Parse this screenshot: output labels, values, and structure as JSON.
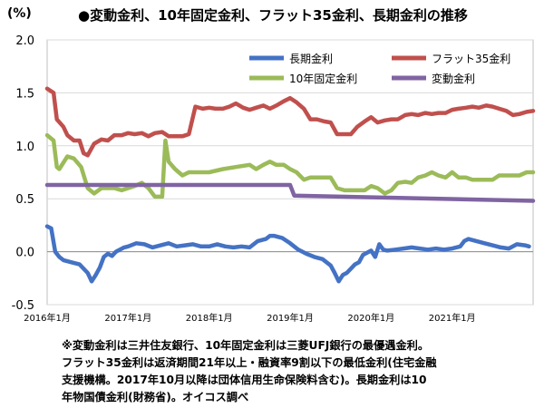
{
  "chart_data": {
    "type": "line",
    "title": "●変動金利、10年固定金利、フラット35金利、長期金利の推移",
    "ylabel": "(%)",
    "xlabel": "",
    "ylim": [
      -0.5,
      2.0
    ],
    "yticks": [
      "2.0",
      "1.5",
      "1.0",
      "0.5",
      "0.0",
      "-0.5"
    ],
    "ytick_values": [
      2.0,
      1.5,
      1.0,
      0.5,
      0.0,
      -0.5
    ],
    "xlim": [
      2016.0,
      2022.0
    ],
    "xticks": [
      "2016年1月",
      "2017年1月",
      "2018年1月",
      "2019年1月",
      "2020年1月",
      "2021年1月"
    ],
    "xtick_values": [
      2016.0,
      2017.0,
      2018.0,
      2019.0,
      2020.0,
      2021.0
    ],
    "legend_position": "top",
    "series": [
      {
        "name": "長期金利",
        "color": "#4472c4",
        "x": [
          2016.0,
          2016.05,
          2016.1,
          2016.15,
          2016.2,
          2016.3,
          2016.4,
          2016.5,
          2016.55,
          2016.6,
          2016.65,
          2016.7,
          2016.75,
          2016.8,
          2016.85,
          2016.9,
          2016.95,
          2017.0,
          2017.1,
          2017.2,
          2017.3,
          2017.4,
          2017.5,
          2017.6,
          2017.7,
          2017.8,
          2017.9,
          2018.0,
          2018.1,
          2018.2,
          2018.3,
          2018.4,
          2018.5,
          2018.6,
          2018.7,
          2018.75,
          2018.8,
          2018.9,
          2019.0,
          2019.1,
          2019.2,
          2019.3,
          2019.4,
          2019.5,
          2019.55,
          2019.6,
          2019.65,
          2019.7,
          2019.75,
          2019.8,
          2019.85,
          2019.9,
          2020.0,
          2020.05,
          2020.1,
          2020.15,
          2020.2,
          2020.3,
          2020.4,
          2020.5,
          2020.6,
          2020.7,
          2020.8,
          2020.9,
          2021.0,
          2021.1,
          2021.15,
          2021.2,
          2021.3,
          2021.4,
          2021.5,
          2021.6,
          2021.7,
          2021.8,
          2021.9,
          2021.95
        ],
        "y": [
          0.24,
          0.22,
          0.0,
          -0.05,
          -0.08,
          -0.1,
          -0.12,
          -0.2,
          -0.28,
          -0.22,
          -0.15,
          -0.05,
          -0.02,
          -0.04,
          0.0,
          0.02,
          0.04,
          0.05,
          0.08,
          0.07,
          0.04,
          0.06,
          0.08,
          0.05,
          0.06,
          0.07,
          0.05,
          0.05,
          0.07,
          0.05,
          0.04,
          0.05,
          0.04,
          0.1,
          0.12,
          0.15,
          0.15,
          0.13,
          0.08,
          0.02,
          -0.02,
          -0.05,
          -0.07,
          -0.13,
          -0.2,
          -0.28,
          -0.22,
          -0.2,
          -0.16,
          -0.12,
          -0.1,
          -0.03,
          0.01,
          -0.05,
          0.07,
          0.02,
          0.01,
          0.02,
          0.03,
          0.04,
          0.03,
          0.02,
          0.03,
          0.02,
          0.03,
          0.05,
          0.1,
          0.12,
          0.1,
          0.08,
          0.06,
          0.04,
          0.03,
          0.07,
          0.06,
          0.05
        ]
      },
      {
        "name": "フラット35金利",
        "color": "#c0504d",
        "x": [
          2016.0,
          2016.08,
          2016.12,
          2016.2,
          2016.25,
          2016.33,
          2016.4,
          2016.45,
          2016.5,
          2016.58,
          2016.67,
          2016.75,
          2016.83,
          2016.92,
          2017.0,
          2017.08,
          2017.17,
          2017.25,
          2017.33,
          2017.42,
          2017.5,
          2017.58,
          2017.67,
          2017.75,
          2017.83,
          2017.92,
          2018.0,
          2018.08,
          2018.17,
          2018.25,
          2018.33,
          2018.42,
          2018.5,
          2018.58,
          2018.67,
          2018.75,
          2018.83,
          2018.92,
          2019.0,
          2019.08,
          2019.17,
          2019.25,
          2019.33,
          2019.42,
          2019.5,
          2019.58,
          2019.67,
          2019.75,
          2019.83,
          2019.92,
          2020.0,
          2020.08,
          2020.17,
          2020.25,
          2020.33,
          2020.42,
          2020.5,
          2020.58,
          2020.67,
          2020.75,
          2020.83,
          2020.92,
          2021.0,
          2021.08,
          2021.17,
          2021.25,
          2021.33,
          2021.42,
          2021.5,
          2021.58,
          2021.67,
          2021.75,
          2021.83,
          2021.92,
          2022.0
        ],
        "y": [
          1.54,
          1.5,
          1.25,
          1.18,
          1.1,
          1.05,
          1.05,
          0.93,
          0.91,
          1.02,
          1.06,
          1.05,
          1.1,
          1.1,
          1.12,
          1.11,
          1.12,
          1.09,
          1.12,
          1.13,
          1.09,
          1.09,
          1.09,
          1.11,
          1.37,
          1.35,
          1.36,
          1.35,
          1.35,
          1.37,
          1.4,
          1.36,
          1.34,
          1.36,
          1.38,
          1.35,
          1.38,
          1.42,
          1.45,
          1.41,
          1.35,
          1.25,
          1.25,
          1.23,
          1.22,
          1.11,
          1.11,
          1.11,
          1.18,
          1.23,
          1.27,
          1.22,
          1.24,
          1.25,
          1.25,
          1.29,
          1.3,
          1.29,
          1.31,
          1.3,
          1.31,
          1.31,
          1.34,
          1.35,
          1.36,
          1.37,
          1.36,
          1.38,
          1.37,
          1.35,
          1.33,
          1.29,
          1.3,
          1.32,
          1.33
        ]
      },
      {
        "name": "10年固定金利",
        "color": "#9bbb59",
        "x": [
          2016.0,
          2016.08,
          2016.12,
          2016.15,
          2016.25,
          2016.33,
          2016.42,
          2016.5,
          2016.58,
          2016.67,
          2016.75,
          2016.83,
          2016.92,
          2017.0,
          2017.08,
          2017.17,
          2017.25,
          2017.33,
          2017.42,
          2017.46,
          2017.5,
          2017.58,
          2017.67,
          2017.75,
          2017.83,
          2017.92,
          2018.0,
          2018.17,
          2018.33,
          2018.5,
          2018.58,
          2018.67,
          2018.75,
          2018.83,
          2018.92,
          2019.0,
          2019.08,
          2019.17,
          2019.25,
          2019.33,
          2019.42,
          2019.5,
          2019.58,
          2019.67,
          2019.75,
          2019.83,
          2019.92,
          2020.0,
          2020.08,
          2020.17,
          2020.25,
          2020.33,
          2020.42,
          2020.5,
          2020.58,
          2020.67,
          2020.75,
          2020.83,
          2020.92,
          2021.0,
          2021.08,
          2021.17,
          2021.25,
          2021.33,
          2021.42,
          2021.5,
          2021.58,
          2021.67,
          2021.75,
          2021.83,
          2021.92,
          2022.0
        ],
        "y": [
          1.1,
          1.05,
          0.8,
          0.78,
          0.9,
          0.88,
          0.8,
          0.6,
          0.55,
          0.6,
          0.6,
          0.6,
          0.58,
          0.6,
          0.62,
          0.65,
          0.6,
          0.52,
          0.52,
          1.05,
          0.85,
          0.78,
          0.72,
          0.75,
          0.75,
          0.75,
          0.75,
          0.78,
          0.8,
          0.82,
          0.78,
          0.82,
          0.85,
          0.82,
          0.82,
          0.78,
          0.75,
          0.68,
          0.7,
          0.7,
          0.7,
          0.7,
          0.6,
          0.58,
          0.58,
          0.58,
          0.58,
          0.62,
          0.6,
          0.55,
          0.58,
          0.65,
          0.66,
          0.65,
          0.7,
          0.72,
          0.75,
          0.72,
          0.7,
          0.75,
          0.7,
          0.7,
          0.68,
          0.68,
          0.68,
          0.68,
          0.72,
          0.72,
          0.72,
          0.72,
          0.75,
          0.75
        ]
      },
      {
        "name": "変動金利",
        "color": "#8064a2",
        "x": [
          2016.0,
          2019.0,
          2019.05,
          2022.0
        ],
        "y": [
          0.63,
          0.63,
          0.53,
          0.48
        ]
      }
    ]
  },
  "note": {
    "line1": "※変動金利は三井住友銀行、10年固定金利は三菱UFJ銀行の最優遇金利。",
    "line2": "フラット35金利は返済期間21年以上・融資率9割以下の最低金利(住宅金融",
    "line3": "支援機構。2017年10月以降は団体信用生命保険料含む)。長期金利は10",
    "line4": "年物国債金利(財務省)。オイコス調べ"
  }
}
